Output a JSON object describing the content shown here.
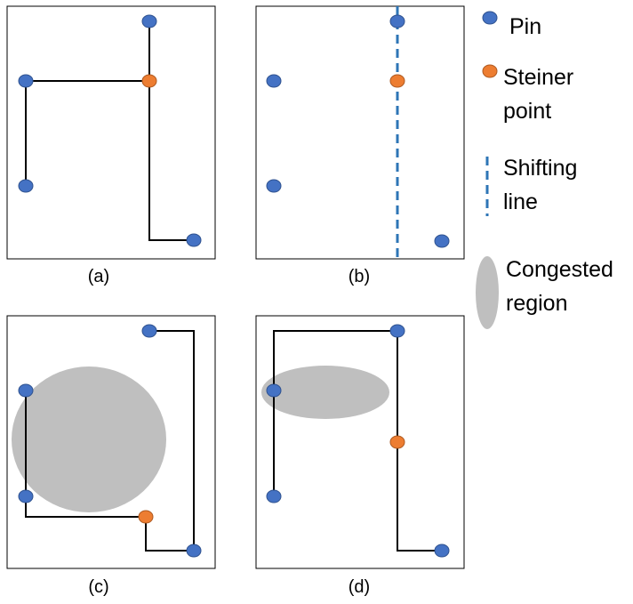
{
  "colors": {
    "pin": "#4472c4",
    "pin_stroke": "#2f528f",
    "steiner": "#ed7d31",
    "steiner_stroke": "#ae5a21",
    "wire": "#000000",
    "shift_line": "#2e75b6",
    "congested": "#bfbfbf",
    "frame": "#000000"
  },
  "panels": {
    "a": {
      "label": "(a)"
    },
    "b": {
      "label": "(b)"
    },
    "c": {
      "label": "(c)"
    },
    "d": {
      "label": "(d)"
    }
  },
  "legend": {
    "pin": "Pin",
    "steiner_line1": "Steiner",
    "steiner_line2": "point",
    "shift_line1": "Shifting",
    "shift_line2": "line",
    "congested_line1": "Congested",
    "congested_line2": "region"
  }
}
